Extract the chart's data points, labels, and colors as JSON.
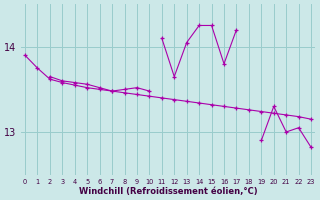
{
  "xlabel": "Windchill (Refroidissement éolien,°C)",
  "bg_color": "#cce8e8",
  "line_color": "#aa00aa",
  "grid_color": "#99cccc",
  "x_ticks": [
    0,
    1,
    2,
    3,
    4,
    5,
    6,
    7,
    8,
    9,
    10,
    11,
    12,
    13,
    14,
    15,
    16,
    17,
    18,
    19,
    20,
    21,
    22,
    23
  ],
  "y_ticks": [
    13,
    14
  ],
  "ylim": [
    12.5,
    14.5
  ],
  "xlim": [
    -0.3,
    23.3
  ],
  "series1_y": [
    13.9,
    13.75,
    13.62,
    13.58,
    13.55,
    13.52,
    13.5,
    13.48,
    13.46,
    13.44,
    13.42,
    13.4,
    13.38,
    13.36,
    13.34,
    13.32,
    13.3,
    13.28,
    13.26,
    13.24,
    13.22,
    13.2,
    13.18,
    13.15
  ],
  "series2_y": [
    null,
    null,
    13.65,
    13.6,
    13.58,
    13.56,
    13.52,
    13.48,
    13.5,
    13.52,
    13.48,
    null,
    null,
    null,
    null,
    null,
    null,
    null,
    null,
    null,
    null,
    null,
    null,
    null
  ],
  "series3_y": [
    null,
    null,
    null,
    null,
    null,
    null,
    null,
    null,
    null,
    null,
    null,
    14.1,
    13.65,
    14.05,
    14.25,
    14.25,
    13.8,
    14.2,
    null,
    null,
    null,
    null,
    null,
    null
  ],
  "series4_y": [
    null,
    null,
    null,
    null,
    null,
    null,
    null,
    null,
    null,
    null,
    null,
    null,
    null,
    null,
    null,
    null,
    null,
    null,
    null,
    12.9,
    13.3,
    13.0,
    13.05,
    12.82
  ]
}
